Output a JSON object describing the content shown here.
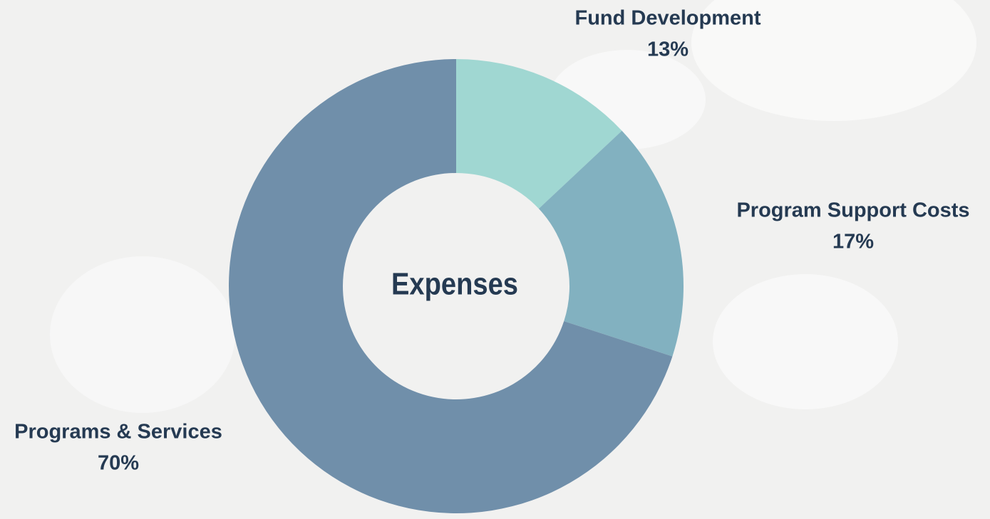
{
  "chart_data": {
    "type": "pie",
    "title": "Expenses",
    "categories": [
      "Fund Development",
      "Program Support Costs",
      "Programs & Services"
    ],
    "values": [
      13,
      17,
      70
    ],
    "value_labels": [
      "13%",
      "17%",
      "70%"
    ],
    "colors": [
      "#a0d7d2",
      "#82b1c0",
      "#708faa"
    ]
  }
}
